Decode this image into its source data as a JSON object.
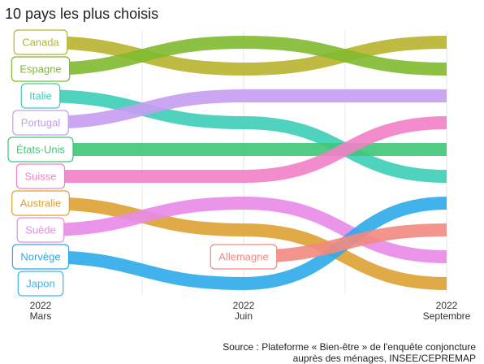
{
  "chart_data": {
    "type": "bump",
    "title": "10 pays les plus choisis",
    "categories": [
      {
        "year": "2022",
        "month": "Mars"
      },
      {
        "year": "2022",
        "month": "Juin"
      },
      {
        "year": "2022",
        "month": "Septembre"
      }
    ],
    "series": [
      {
        "name": "Canada",
        "color": "#b8b32e",
        "values": [
          1,
          2,
          1
        ]
      },
      {
        "name": "Espagne",
        "color": "#7fba2f",
        "values": [
          2,
          1,
          2
        ]
      },
      {
        "name": "Italie",
        "color": "#3ccdb7",
        "values": [
          3,
          4,
          6
        ]
      },
      {
        "name": "Portugal",
        "color": "#c59cf2",
        "values": [
          4,
          3,
          3
        ]
      },
      {
        "name": "États-Unis",
        "color": "#3dc777",
        "values": [
          5,
          5,
          5
        ]
      },
      {
        "name": "Suisse",
        "color": "#f27fc6",
        "values": [
          6,
          6,
          4
        ]
      },
      {
        "name": "Australie",
        "color": "#dda233",
        "values": [
          7,
          8,
          10
        ]
      },
      {
        "name": "Suède",
        "color": "#e98ae8",
        "values": [
          8,
          7,
          9
        ]
      },
      {
        "name": "Norvège",
        "color": "#2eaaea",
        "values": [
          9,
          10,
          7
        ]
      },
      {
        "name": "Japon",
        "color": "#3bb6ea",
        "values": [
          10,
          null,
          null
        ]
      },
      {
        "name": "Allemagne",
        "color": "#f28a80",
        "values": [
          null,
          9,
          8
        ]
      }
    ],
    "source": [
      "Source : Plateforme « Bien-être » de l'enquête conjoncture",
      "auprès des ménages, INSEE/CEPREMAP"
    ]
  }
}
